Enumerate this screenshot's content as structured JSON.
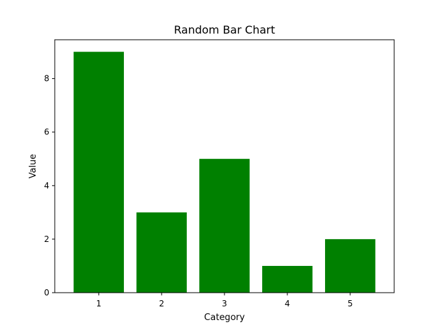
{
  "chart_data": {
    "type": "bar",
    "title": "Random Bar Chart",
    "xlabel": "Category",
    "ylabel": "Value",
    "categories": [
      "1",
      "2",
      "3",
      "4",
      "5"
    ],
    "values": [
      9,
      3,
      5,
      1,
      2
    ],
    "xlim": [
      0.3,
      5.7
    ],
    "ylim": [
      0,
      9.45
    ],
    "yticks": [
      0,
      2,
      4,
      6,
      8
    ],
    "bar_color": "#008000",
    "grid": false,
    "legend": "none"
  }
}
